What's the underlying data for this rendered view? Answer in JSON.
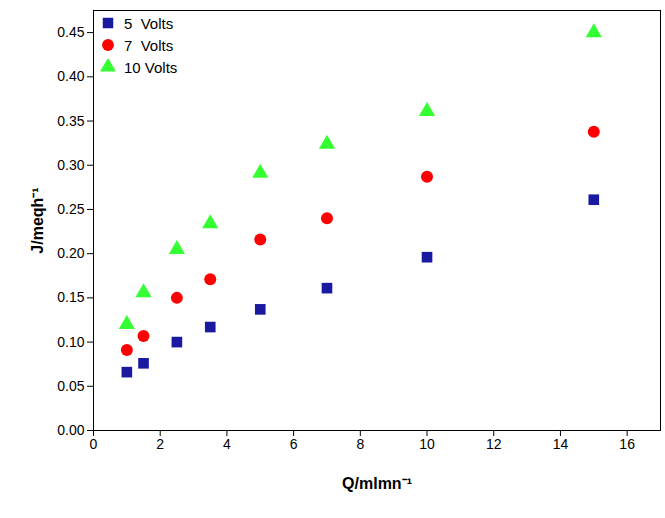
{
  "chart_data": {
    "type": "scatter",
    "x_label": "Q/mlmn⁻¹",
    "y_label": "J/meqh⁻¹",
    "x": [
      1,
      1.5,
      2.5,
      3.5,
      5,
      7,
      10,
      15
    ],
    "series": [
      {
        "name": "5  Volts",
        "color": "#1a1aa0",
        "marker": "square",
        "values": [
          0.066,
          0.076,
          0.1,
          0.117,
          0.137,
          0.161,
          0.196,
          0.261
        ]
      },
      {
        "name": "7  Volts",
        "color": "#ff0000",
        "marker": "circle",
        "values": [
          0.091,
          0.107,
          0.15,
          0.171,
          0.216,
          0.24,
          0.287,
          0.338
        ]
      },
      {
        "name": "10 Volts",
        "color": "#33ff33",
        "marker": "triangle",
        "values": [
          0.12,
          0.156,
          0.205,
          0.234,
          0.291,
          0.324,
          0.361,
          0.45
        ]
      }
    ],
    "xlim": [
      0,
      17
    ],
    "xticks": [
      0,
      2,
      4,
      6,
      8,
      10,
      12,
      14,
      16
    ],
    "ylim": [
      0,
      0.475
    ],
    "yticks": [
      {
        "value": 0,
        "label": "0.00"
      },
      0.05,
      {
        "value": 0.1,
        "label": "0.10"
      },
      0.15,
      {
        "value": 0.2,
        "label": "0.20"
      },
      0.25,
      {
        "value": 0.3,
        "label": "0.30"
      },
      0.35,
      {
        "value": 0.4,
        "label": "0.40"
      },
      0.45
    ],
    "grid": false,
    "legend": "upper left"
  }
}
